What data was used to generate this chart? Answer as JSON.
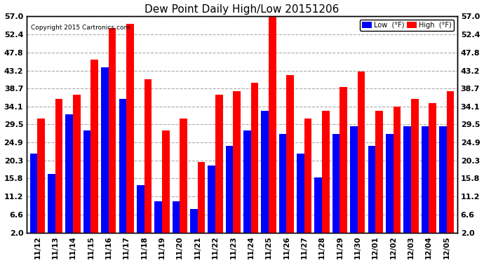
{
  "title": "Dew Point Daily High/Low 20151206",
  "copyright": "Copyright 2015 Cartronics.com",
  "dates": [
    "11/12",
    "11/13",
    "11/14",
    "11/15",
    "11/16",
    "11/17",
    "11/18",
    "11/19",
    "11/20",
    "11/21",
    "11/22",
    "11/23",
    "11/24",
    "11/25",
    "11/26",
    "11/27",
    "11/28",
    "11/29",
    "11/30",
    "12/01",
    "12/02",
    "12/03",
    "12/04",
    "12/05"
  ],
  "low_values": [
    22,
    17,
    32,
    28,
    44,
    36,
    14,
    10,
    10,
    8,
    19,
    24,
    28,
    33,
    27,
    22,
    16,
    27,
    29,
    24,
    27,
    29,
    29,
    29
  ],
  "high_values": [
    31,
    36,
    37,
    46,
    54,
    55,
    41,
    28,
    31,
    20,
    37,
    38,
    40,
    57,
    42,
    31,
    33,
    39,
    43,
    33,
    34,
    36,
    35,
    38
  ],
  "low_color": "#0000ff",
  "high_color": "#ff0000",
  "bg_color": "#ffffff",
  "plot_bg_color": "#ffffff",
  "grid_color": "#aaaaaa",
  "yticks": [
    2.0,
    6.6,
    11.2,
    15.8,
    20.3,
    24.9,
    29.5,
    34.1,
    38.7,
    43.2,
    47.8,
    52.4,
    57.0
  ],
  "ylim": [
    2.0,
    57.0
  ],
  "bar_width": 0.42,
  "legend_low_label": "Low  (°F)",
  "legend_high_label": "High  (°F)",
  "ybase": 2.0
}
